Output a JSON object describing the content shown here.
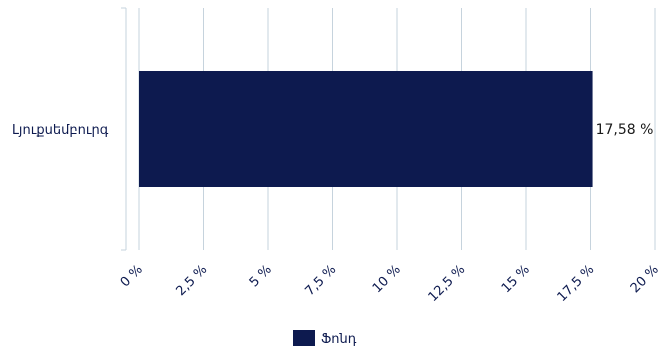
{
  "chart_data": {
    "type": "bar",
    "orientation": "horizontal",
    "categories": [
      "Լյուքսեմբուրգ"
    ],
    "series": [
      {
        "name": "Ֆոնդ",
        "values": [
          17.58
        ],
        "value_labels": [
          "17,58 %"
        ],
        "color": "#0d1a4f"
      }
    ],
    "x_ticks": [
      0,
      2.5,
      5,
      7.5,
      10,
      12.5,
      15,
      17.5,
      20
    ],
    "x_tick_labels": [
      "0 %",
      "2,5 %",
      "5 %",
      "7,5 %",
      "10 %",
      "12,5 %",
      "15 %",
      "17,5 %",
      "20 %"
    ],
    "xlim": [
      0,
      20
    ],
    "grid": true,
    "legend_position": "bottom-center",
    "colors": {
      "bar": "#0d1a4f",
      "grid": "#c6d3dd",
      "text": "#0d1a4f"
    }
  }
}
